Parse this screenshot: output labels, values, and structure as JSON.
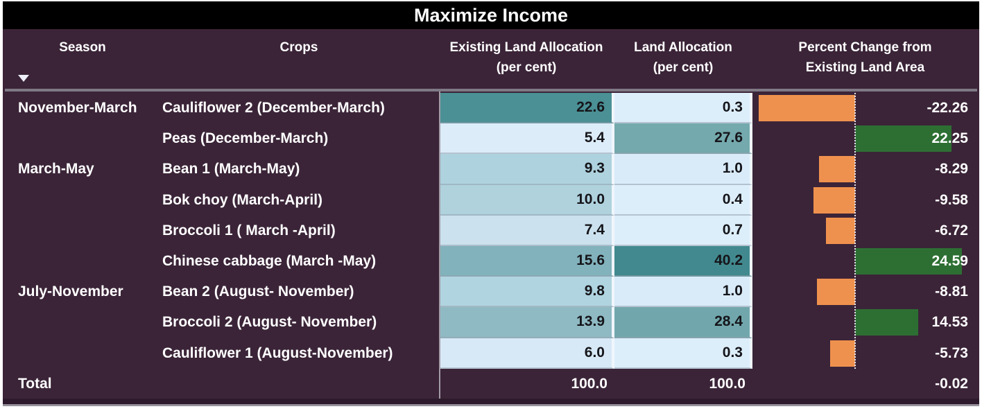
{
  "title_bar": {
    "title": "Maximize Income"
  },
  "header": {
    "season": "Season",
    "crops": "Crops",
    "existing": "Existing Land Allocation (per cent)",
    "land": "Land Allocation (per cent)",
    "pct": "Percent Change from Existing Land Area",
    "sort_indicator": "triangle-down"
  },
  "colors": {
    "background": "#3b2438",
    "title_bg": "#000000",
    "header_text": "#ffffff",
    "cell_text": "#15151a",
    "gradient_min": "#ddeefb",
    "gradient_max": "#41898e"
  },
  "chart_data": {
    "type": "table",
    "title": "Maximize Income",
    "columns": [
      "Season",
      "Crops",
      "Existing Land Allocation (per cent)",
      "Land Allocation (per cent)",
      "Percent Change from Existing Land Area"
    ],
    "bar_colors": {
      "positive": "#2d6f33",
      "negative": "#ef914e"
    },
    "rows": [
      {
        "season": "November-March",
        "crop": "Cauliflower 2 (December-March)",
        "existing": "22.6",
        "existing_bg": "#4a9095",
        "land": "0.3",
        "land_bg": "#ddeefb",
        "pct": "-22.26"
      },
      {
        "season": "",
        "crop": "Peas (December-March)",
        "existing": "5.4",
        "existing_bg": "#dcecf9",
        "land": "27.6",
        "land_bg": "#74a9ad",
        "pct": "22.25"
      },
      {
        "season": "March-May",
        "crop": "Bean 1 (March-May)",
        "existing": "9.3",
        "existing_bg": "#aed2de",
        "land": "1.0",
        "land_bg": "#d9ebf9",
        "pct": "-8.29"
      },
      {
        "season": "",
        "crop": "Bok choy (March-April)",
        "existing": "10.0",
        "existing_bg": "#afd2dd",
        "land": "0.4",
        "land_bg": "#ddeefb",
        "pct": "-9.58"
      },
      {
        "season": "",
        "crop": "Broccoli 1 ( March -April)",
        "existing": "7.4",
        "existing_bg": "#cbe1ee",
        "land": "0.7",
        "land_bg": "#dceefa",
        "pct": "-6.72"
      },
      {
        "season": "",
        "crop": "Chinese cabbage (March -May)",
        "existing": "15.6",
        "existing_bg": "#82b2bc",
        "land": "40.2",
        "land_bg": "#41898e",
        "pct": "24.59"
      },
      {
        "season": "July-November",
        "crop": "Bean 2 (August- November)",
        "existing": "9.8",
        "existing_bg": "#b0d4e0",
        "land": "1.0",
        "land_bg": "#d9ebf9",
        "pct": "-8.81"
      },
      {
        "season": "",
        "crop": "Broccoli 2 (August- November)",
        "existing": "13.9",
        "existing_bg": "#8fbac3",
        "land": "28.4",
        "land_bg": "#71a7ac",
        "pct": "14.53"
      },
      {
        "season": "",
        "crop": "Cauliflower 1 (August-November)",
        "existing": "6.0",
        "existing_bg": "#d7e9f6",
        "land": "0.3",
        "land_bg": "#ddeefb",
        "pct": "-5.73"
      }
    ],
    "total": {
      "label": "Total",
      "existing": "100.0",
      "land": "100.0",
      "pct": "-0.02"
    }
  }
}
